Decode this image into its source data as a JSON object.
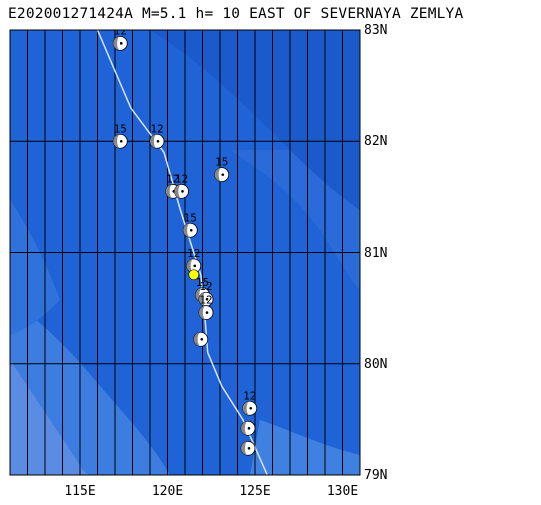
{
  "title": "E202001271424A M=5.1 h= 10 EAST OF SEVERNAYA ZEMLYA",
  "map": {
    "lat_labels": [
      "83N",
      "82N",
      "81N",
      "80N",
      "79N"
    ],
    "lon_labels": [
      "115E",
      "120E",
      "125E",
      "130E"
    ],
    "lat_range": [
      79,
      83
    ],
    "lon_range": [
      110.5,
      130.5
    ],
    "colors": {
      "ocean_deep": "#1f63d6",
      "ocean_shallow": "#3c7ddf",
      "shelf": "#6e9ae6",
      "grid": "#000000",
      "track": "#d8e4ff",
      "epicenter": "#ffff00"
    },
    "epicenter": {
      "lat": 80.8,
      "lon": 121.0
    },
    "track": [
      {
        "lon": 115.5,
        "lat": 83.0
      },
      {
        "lon": 117.4,
        "lat": 82.3
      },
      {
        "lon": 119.3,
        "lat": 81.9
      },
      {
        "lon": 120.2,
        "lat": 81.4
      },
      {
        "lon": 120.8,
        "lat": 81.1
      },
      {
        "lon": 121.4,
        "lat": 80.8
      },
      {
        "lon": 121.6,
        "lat": 80.5
      },
      {
        "lon": 121.8,
        "lat": 80.1
      },
      {
        "lon": 122.6,
        "lat": 79.8
      },
      {
        "lon": 123.8,
        "lat": 79.5
      },
      {
        "lon": 125.2,
        "lat": 79.0
      }
    ],
    "mechanisms": [
      {
        "lon": 116.8,
        "lat": 82.88,
        "label": "12"
      },
      {
        "lon": 116.8,
        "lat": 82.0,
        "label": "15"
      },
      {
        "lon": 118.9,
        "lat": 82.0,
        "label": "12"
      },
      {
        "lon": 122.6,
        "lat": 81.7,
        "label": "15"
      },
      {
        "lon": 119.8,
        "lat": 81.55,
        "label": "12"
      },
      {
        "lon": 120.3,
        "lat": 81.55,
        "label": "12"
      },
      {
        "lon": 120.8,
        "lat": 81.2,
        "label": "15"
      },
      {
        "lon": 121.0,
        "lat": 80.88,
        "label": "12"
      },
      {
        "lon": 121.5,
        "lat": 80.62,
        "label": "15"
      },
      {
        "lon": 121.7,
        "lat": 80.58,
        "label": "12"
      },
      {
        "lon": 121.7,
        "lat": 80.46,
        "label": "12"
      },
      {
        "lon": 121.4,
        "lat": 80.22,
        "label": ""
      },
      {
        "lon": 124.2,
        "lat": 79.6,
        "label": "12"
      },
      {
        "lon": 124.1,
        "lat": 79.42,
        "label": ""
      },
      {
        "lon": 124.1,
        "lat": 79.24,
        "label": ""
      }
    ]
  }
}
